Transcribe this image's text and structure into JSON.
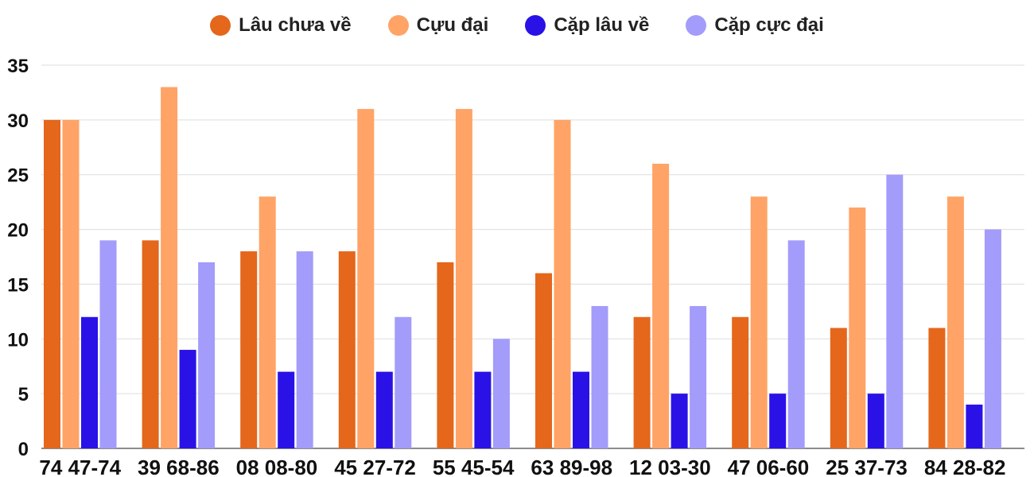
{
  "chart_data": {
    "type": "bar",
    "title": "",
    "xlabel": "",
    "ylabel": "",
    "ylim": [
      0,
      35
    ],
    "yticks": [
      0,
      5,
      10,
      15,
      20,
      25,
      30,
      35
    ],
    "grid": true,
    "legend_position": "top-center",
    "categories": [
      "74 47-74",
      "39 68-86",
      "08 08-80",
      "45 27-72",
      "55 45-54",
      "63 89-98",
      "12 03-30",
      "47 06-60",
      "25 37-73",
      "84 28-82"
    ],
    "series": [
      {
        "name": "Lâu chưa về",
        "color": "#e4671b",
        "values": [
          30,
          19,
          18,
          18,
          17,
          16,
          12,
          12,
          11,
          11
        ]
      },
      {
        "name": "Cựu đại",
        "color": "#ffa366",
        "values": [
          30,
          33,
          23,
          31,
          31,
          30,
          26,
          23,
          22,
          23
        ]
      },
      {
        "name": "Cặp lâu về",
        "color": "#2a12e6",
        "values": [
          12,
          9,
          7,
          7,
          7,
          7,
          5,
          5,
          5,
          4
        ]
      },
      {
        "name": "Cặp cực đại",
        "color": "#a39cfa",
        "values": [
          19,
          17,
          18,
          12,
          10,
          13,
          13,
          19,
          25,
          20
        ]
      }
    ]
  }
}
